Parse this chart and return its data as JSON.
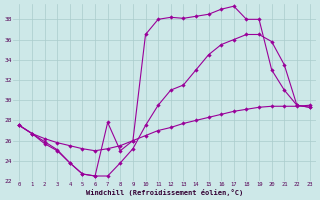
{
  "xlabel": "Windchill (Refroidissement éolien,°C)",
  "bg_color": "#cde8e8",
  "grid_color": "#aacccc",
  "line_color": "#990099",
  "xlim": [
    -0.5,
    23.5
  ],
  "ylim": [
    22,
    39.5
  ],
  "yticks": [
    22,
    24,
    26,
    28,
    30,
    32,
    34,
    36,
    38
  ],
  "xticks": [
    0,
    1,
    2,
    3,
    4,
    5,
    6,
    7,
    8,
    9,
    10,
    11,
    12,
    13,
    14,
    15,
    16,
    17,
    18,
    19,
    20,
    21,
    22,
    23
  ],
  "line1_x": [
    0,
    1,
    2,
    3,
    4,
    5,
    6,
    7,
    8,
    9,
    10,
    11,
    12,
    13,
    14,
    15,
    16,
    17,
    18,
    19,
    20,
    21,
    22,
    23
  ],
  "line1_y": [
    27.5,
    26.7,
    26.2,
    25.8,
    25.5,
    25.2,
    25.0,
    25.2,
    25.5,
    26.0,
    26.5,
    27.0,
    27.3,
    27.7,
    28.0,
    28.3,
    28.6,
    28.9,
    29.1,
    29.3,
    29.4,
    29.4,
    29.4,
    29.5
  ],
  "line2_x": [
    0,
    1,
    2,
    3,
    4,
    5,
    6,
    7,
    8,
    9,
    10,
    11,
    12,
    13,
    14,
    15,
    16,
    17,
    18,
    19,
    20,
    21,
    22,
    23
  ],
  "line2_y": [
    27.5,
    26.7,
    25.7,
    25.0,
    23.8,
    22.7,
    22.5,
    22.5,
    23.8,
    25.2,
    27.5,
    29.5,
    31.0,
    31.5,
    33.0,
    34.5,
    35.5,
    36.0,
    36.5,
    36.5,
    35.8,
    33.5,
    29.5,
    29.3
  ],
  "line3_x": [
    0,
    1,
    2,
    3,
    4,
    5,
    6,
    7,
    8,
    9,
    10,
    11,
    12,
    13,
    14,
    15,
    16,
    17,
    18,
    19,
    20,
    21,
    22,
    23
  ],
  "line3_y": [
    27.5,
    26.7,
    25.9,
    25.1,
    23.8,
    22.7,
    22.5,
    27.8,
    25.0,
    26.0,
    36.5,
    38.0,
    38.2,
    38.1,
    38.3,
    38.5,
    39.0,
    39.3,
    38.0,
    38.0,
    33.0,
    31.0,
    29.5,
    29.3
  ]
}
